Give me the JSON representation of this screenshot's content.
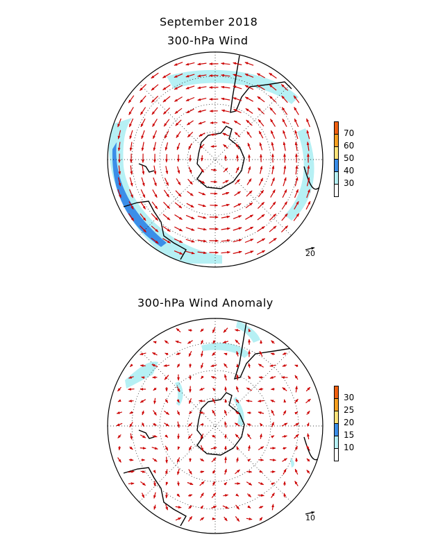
{
  "header": {
    "title": "September 2018",
    "subtitle": "300-hPa Wind"
  },
  "panels": [
    {
      "id": "wind",
      "colorbar_labels": [
        "70",
        "60",
        "50",
        "40",
        "30"
      ],
      "colorbar_colors": [
        "#f06010",
        "#f8a020",
        "#fde37a",
        "#3b8ee8",
        "#b6f0f4",
        "#ffffff"
      ],
      "ref_vector_label": "20"
    },
    {
      "id": "anomaly",
      "title": "300-hPa Wind Anomaly",
      "colorbar_labels": [
        "30",
        "25",
        "20",
        "15",
        "10"
      ],
      "colorbar_colors": [
        "#f06010",
        "#f8a020",
        "#fde37a",
        "#3b8ee8",
        "#b6f0f4",
        "#ffffff"
      ],
      "ref_vector_label": "10"
    }
  ],
  "colors": {
    "vector": "#cc0000",
    "shade_light": "#b6f0f4",
    "shade_dark": "#3b8ee8",
    "coast": "#000000"
  }
}
